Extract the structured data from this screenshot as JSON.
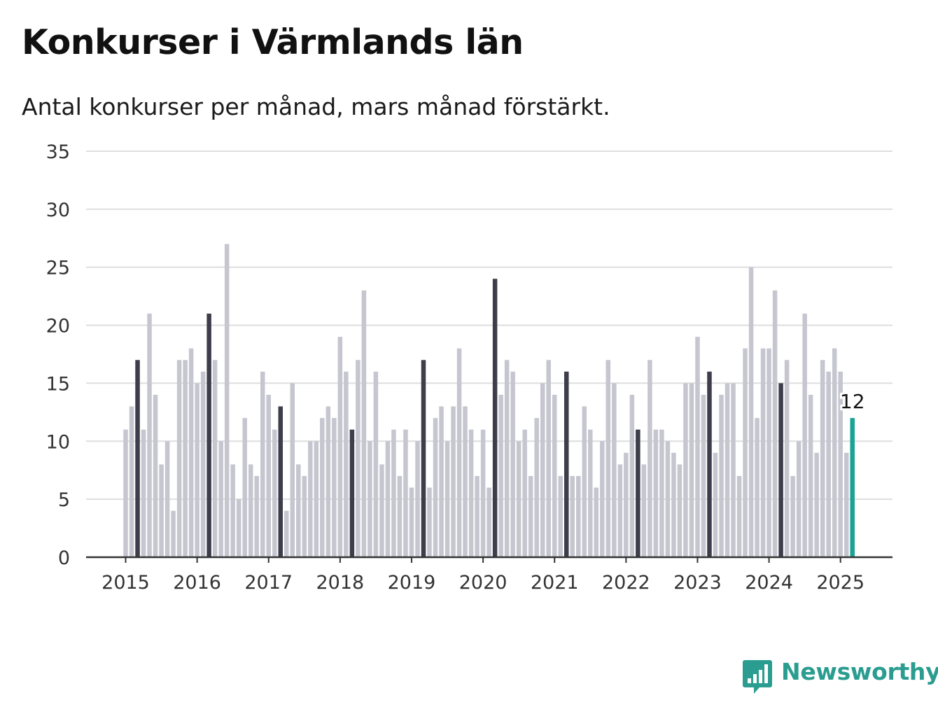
{
  "header": {
    "title": "Konkurser i Värmlands län",
    "subtitle": "Antal konkurser per månad, mars månad förstärkt."
  },
  "branding": {
    "name": "Newsworthy",
    "icon": "bar-chart-speech-bubble-icon",
    "color": "#2a9d90"
  },
  "chart_data": {
    "type": "bar",
    "title": "Konkurser i Värmlands län",
    "subtitle": "Antal konkurser per månad, mars månad förstärkt.",
    "xlabel": "",
    "ylabel": "",
    "ylim": [
      0,
      35
    ],
    "yticks": [
      "0",
      "5",
      "10",
      "15",
      "20",
      "25",
      "30",
      "35"
    ],
    "xticks": [
      "2015",
      "2016",
      "2017",
      "2018",
      "2019",
      "2020",
      "2021",
      "2022",
      "2023",
      "2024",
      "2025"
    ],
    "start": "2015-01",
    "grid": true,
    "highlight_month": "mars",
    "last_value_label": "12",
    "colors": {
      "normal": "#c6c6d0",
      "march": "#3d3d4b",
      "latest": "#1aa394"
    },
    "values": [
      11,
      13,
      17,
      11,
      21,
      14,
      8,
      10,
      4,
      17,
      17,
      18,
      15,
      16,
      21,
      17,
      10,
      27,
      8,
      5,
      12,
      8,
      7,
      16,
      14,
      11,
      13,
      4,
      15,
      8,
      7,
      10,
      10,
      12,
      13,
      12,
      19,
      16,
      11,
      17,
      23,
      10,
      16,
      8,
      10,
      11,
      7,
      11,
      6,
      10,
      17,
      6,
      12,
      13,
      10,
      13,
      18,
      13,
      11,
      7,
      11,
      6,
      24,
      14,
      17,
      16,
      10,
      11,
      7,
      12,
      15,
      17,
      14,
      7,
      16,
      7,
      7,
      13,
      11,
      6,
      10,
      17,
      15,
      8,
      9,
      14,
      11,
      8,
      17,
      11,
      11,
      10,
      9,
      8,
      15,
      15,
      19,
      14,
      16,
      9,
      14,
      15,
      15,
      7,
      18,
      25,
      12,
      18,
      18,
      23,
      15,
      17,
      7,
      10,
      21,
      14,
      9,
      17,
      16,
      18,
      16,
      9,
      12
    ]
  }
}
